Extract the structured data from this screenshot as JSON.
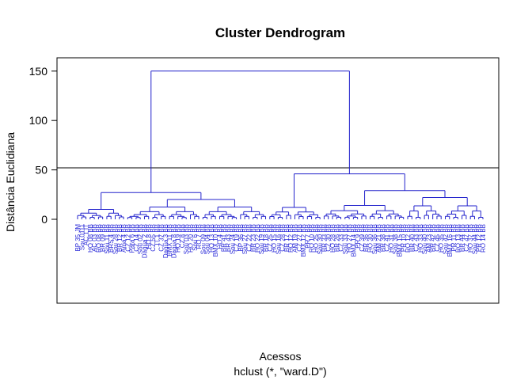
{
  "chart_data": {
    "type": "dendrogram",
    "title": "Cluster Dendrogram",
    "xlabel": "Acessos",
    "sublabel": "hclust (*, \"ward.D\")",
    "ylabel": "Distância Euclidiana",
    "yticks": [
      0,
      50,
      100,
      150
    ],
    "ylim": [
      -85,
      160
    ],
    "cut_height": 52,
    "colors": {
      "tree": "#2222cc",
      "cutline": "#000000",
      "axis": "#000000"
    },
    "leaf_count": 98,
    "leaf_labels": [
      "BP 35 JM",
      "Sou 0111",
      "AC 1 IT",
      "HO 08 BB",
      "AC 03 BB",
      "RO 08 BB",
      "BR 09 BB",
      "Sou 11 BB",
      "BRS 4 BB",
      "Sou 28 BB",
      "BR 12 BB",
      "Ama 4 BB",
      "CZ 12 BB",
      "Para 6 BB",
      "CZ 14 BB",
      "Sou 02 BB",
      "Dagua 2 BB",
      "HO 8 BB",
      "CZ 55 BB",
      "IT 1 BB",
      "CZ 37 BB",
      "Dagua 3 BB",
      "BMX 11 BB",
      "Dagua 8 BB",
      "HO 19 BB",
      "CZ 8 BB",
      "Sou 03 BB",
      "HO 20 BB",
      "Sou 6 BB",
      "RO 7 BB",
      "Sou 09 BB",
      "Sou 04 BB",
      "HO 13 BB",
      "BMX 10 BB",
      "HO 4 BB",
      "BR 41 BB",
      "BR 43 BB",
      "Sou 24 BB",
      "CZ 19 BB",
      "BP 36 BB",
      "Sou 27 BB",
      "CZ 22 BB",
      "BR 23 BB",
      "HO 22 BB",
      "Sou 19 BB",
      "BR 18 BB",
      "CZ 25 BB",
      "HO 15 BB",
      "Sou 16 BB",
      "CZ 28 BB",
      "BR 17 BB",
      "HO 12 BB",
      "AM 19 BB",
      "CZ 27 BB",
      "BMX 12 BB",
      "PR 7 BB",
      "RO 10 BB",
      "HO 25 BB",
      "Sou 30 BB",
      "BR 33 BB",
      "CZ 30 BB",
      "HO 28 BB",
      "BR 26 BB",
      "CZ 33 BB",
      "Sou 33 BB",
      "HO 27 BB",
      "BMX 14 BB",
      "PR 9 BB",
      "CZ 39 BB",
      "BR 36 BB",
      "HO 30 BB",
      "Sou 36 BB",
      "AM 21 BB",
      "BR 38 BB",
      "CZ 41 BB",
      "HO 31 BB",
      "Sou 38 BB",
      "BMX 15 BB",
      "PR 10 BB",
      "RO 12 BB",
      "BR 40 BB",
      "CZ 43 BB",
      "HO 33 BB",
      "Sou 40 BB",
      "AM 23 BB",
      "BR 42 BB",
      "CZ 45 BB",
      "HO 35 BB",
      "Sou 42 BB",
      "BMX 16 BB",
      "PR 11 BB",
      "RO 13 BB",
      "BR 44 BB",
      "CZ 47 BB",
      "HO 37 BB",
      "Sou 44 BB",
      "PR 12 BB",
      "RO 14 BB"
    ],
    "merges": [
      {
        "members": "left-branch",
        "height": 150
      },
      {
        "members": "right-branch",
        "height": 150
      },
      {
        "members": "left-a",
        "height": 27
      },
      {
        "members": "left-b",
        "height": 20
      },
      {
        "members": "right-a",
        "height": 46
      },
      {
        "members": "right-b",
        "height": 29
      }
    ]
  }
}
